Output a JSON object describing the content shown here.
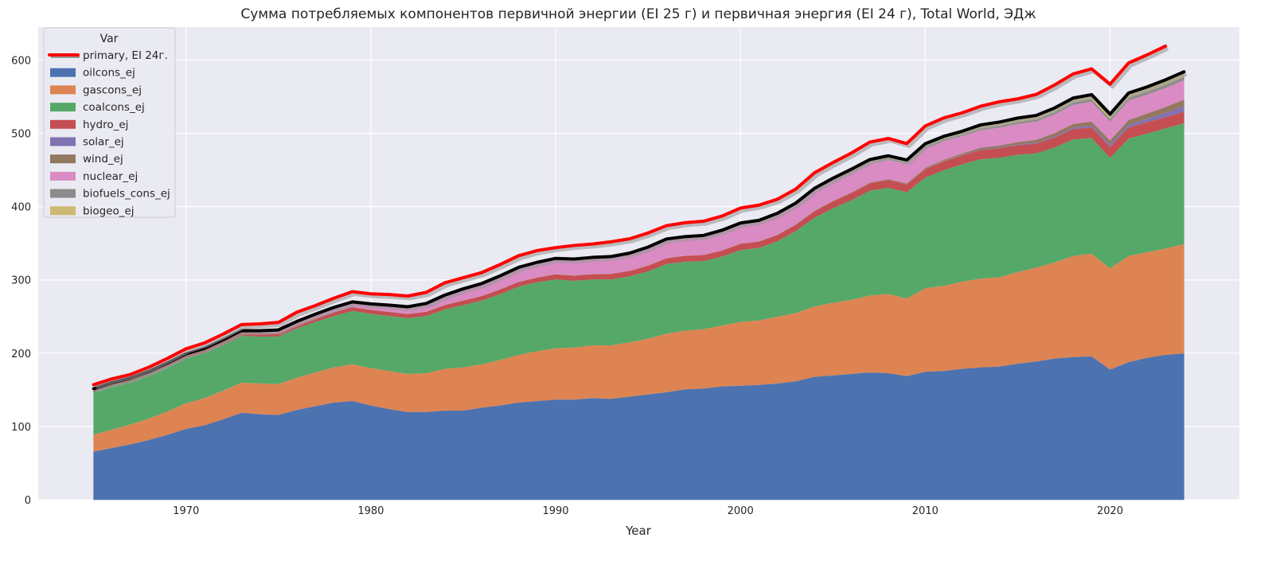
{
  "chart_data": {
    "type": "area",
    "title": "Сумма потребляемых компонентов первичной энергии (EI 25 г) и первичная энергия (EI 24 г), Total World, ЭДж",
    "xlabel": "Year",
    "ylabel": "",
    "xlim": [
      1962,
      2027
    ],
    "ylim": [
      0,
      645
    ],
    "xticks": [
      1970,
      1980,
      1990,
      2000,
      2010,
      2020
    ],
    "yticks": [
      0,
      100,
      200,
      300,
      400,
      500,
      600
    ],
    "grid": true,
    "legend": {
      "title": "Var",
      "placement": "top-left"
    },
    "x_start": 1965,
    "x_end": 2024,
    "stacked_series": [
      {
        "name": "oilcons_ej",
        "color": "#4c72b0",
        "values": [
          66,
          71,
          76,
          82,
          89,
          97,
          102,
          110,
          119,
          117,
          116,
          123,
          128,
          133,
          135,
          129,
          124,
          120,
          120,
          122,
          122,
          126,
          129,
          133,
          135,
          137,
          137,
          139,
          138,
          141,
          144,
          147,
          151,
          152,
          155,
          156,
          157,
          159,
          162,
          168,
          170,
          172,
          174,
          173,
          169,
          175,
          176,
          179,
          181,
          182,
          186,
          189,
          193,
          195,
          196,
          178,
          188,
          194,
          198,
          200
        ]
      },
      {
        "name": "gascons_ej",
        "color": "#dd8452",
        "values": [
          23,
          25,
          27,
          29,
          32,
          35,
          37,
          39,
          41,
          42,
          42,
          44,
          46,
          48,
          50,
          51,
          52,
          52,
          53,
          57,
          59,
          59,
          62,
          65,
          68,
          70,
          71,
          72,
          73,
          74,
          76,
          80,
          80,
          81,
          83,
          87,
          88,
          91,
          93,
          96,
          99,
          101,
          105,
          108,
          106,
          114,
          116,
          119,
          121,
          122,
          125,
          128,
          131,
          138,
          140,
          138,
          145,
          144,
          145,
          149
        ]
      },
      {
        "name": "coalcons_ej",
        "color": "#55a868",
        "values": [
          59,
          60,
          59,
          60,
          61,
          62,
          62,
          63,
          64,
          64,
          65,
          67,
          69,
          70,
          73,
          74,
          75,
          76,
          78,
          81,
          85,
          87,
          90,
          93,
          94,
          94,
          91,
          90,
          90,
          90,
          92,
          95,
          94,
          93,
          94,
          98,
          99,
          103,
          112,
          121,
          129,
          136,
          143,
          145,
          145,
          151,
          158,
          160,
          163,
          163,
          160,
          156,
          157,
          159,
          158,
          151,
          160,
          162,
          164,
          165
        ]
      },
      {
        "name": "hydro_ej",
        "color": "#c44e52",
        "values": [
          3,
          3.2,
          3.3,
          3.5,
          3.7,
          3.9,
          4.1,
          4.3,
          4.4,
          4.7,
          4.8,
          4.9,
          5,
          5.3,
          5.5,
          5.7,
          5.8,
          5.9,
          6.1,
          6.3,
          6.4,
          6.5,
          6.6,
          6.7,
          6.8,
          7.1,
          7.3,
          7.3,
          7.6,
          7.7,
          8,
          8.1,
          8.3,
          8.4,
          8.5,
          8.8,
          8.7,
          8.8,
          8.9,
          9.3,
          9.7,
          10.1,
          10.4,
          10.8,
          10.8,
          11.5,
          11.9,
          12.2,
          12.6,
          12.9,
          13.1,
          13.3,
          13.6,
          14.1,
          14.5,
          15,
          15.3,
          15.5,
          15.4,
          15.8
        ]
      },
      {
        "name": "solar_ej",
        "color": "#8172b3",
        "values": [
          0,
          0,
          0,
          0,
          0,
          0,
          0,
          0,
          0,
          0,
          0,
          0,
          0,
          0,
          0,
          0,
          0,
          0,
          0,
          0,
          0,
          0,
          0,
          0,
          0,
          0,
          0,
          0,
          0,
          0,
          0,
          0,
          0,
          0,
          0,
          0,
          0,
          0,
          0,
          0,
          0.01,
          0.02,
          0.03,
          0.05,
          0.08,
          0.12,
          0.25,
          0.37,
          0.5,
          0.7,
          0.9,
          1.2,
          1.6,
          2,
          2.5,
          3,
          3.6,
          4.5,
          5.7,
          7.5
        ]
      },
      {
        "name": "wind_ej",
        "color": "#937860",
        "values": [
          0,
          0,
          0,
          0,
          0,
          0,
          0,
          0,
          0,
          0,
          0,
          0,
          0,
          0,
          0,
          0,
          0,
          0,
          0,
          0,
          0,
          0,
          0,
          0,
          0,
          0.01,
          0.02,
          0.02,
          0.03,
          0.03,
          0.04,
          0.05,
          0.07,
          0.09,
          0.12,
          0.14,
          0.19,
          0.23,
          0.3,
          0.38,
          0.47,
          0.6,
          0.77,
          0.99,
          1.2,
          1.5,
          1.9,
          2.2,
          2.6,
          2.9,
          3.4,
          3.9,
          4.5,
          5,
          5.4,
          5.8,
          6.6,
          7.3,
          8.1,
          8.8
        ]
      },
      {
        "name": "nuclear_ej",
        "color": "#da8bc3",
        "values": [
          0.3,
          0.4,
          0.5,
          0.6,
          0.7,
          0.9,
          1.2,
          1.6,
          2,
          2.6,
          3.5,
          4,
          4.8,
          5.6,
          5.9,
          6.9,
          8,
          8.6,
          9.8,
          11.8,
          14.2,
          15.2,
          16.6,
          18,
          18.6,
          19.5,
          20.4,
          20.6,
          21.3,
          21.7,
          22.6,
          23.4,
          23.3,
          23.8,
          24.6,
          25.2,
          25.9,
          26.2,
          25.8,
          27,
          27.2,
          27.5,
          26.8,
          26.7,
          26.3,
          26.9,
          25.7,
          23.7,
          23.9,
          24.3,
          24.6,
          24.9,
          25.3,
          25.9,
          26.8,
          25.8,
          26.6,
          25.6,
          25.9,
          26.6
        ]
      },
      {
        "name": "biofuels_cons_ej",
        "color": "#8c8c8c",
        "values": [
          0,
          0,
          0,
          0,
          0,
          0,
          0,
          0,
          0,
          0,
          0.01,
          0.02,
          0.03,
          0.05,
          0.07,
          0.1,
          0.12,
          0.15,
          0.18,
          0.2,
          0.22,
          0.25,
          0.28,
          0.3,
          0.3,
          0.3,
          0.3,
          0.3,
          0.32,
          0.33,
          0.35,
          0.38,
          0.4,
          0.4,
          0.4,
          0.4,
          0.42,
          0.5,
          0.6,
          0.7,
          0.8,
          1.1,
          1.4,
          1.8,
          2,
          2.3,
          2.4,
          2.4,
          2.6,
          2.9,
          3,
          3.1,
          3.3,
          3.6,
          3.9,
          3.7,
          3.9,
          4.2,
          4.5,
          4.7
        ]
      },
      {
        "name": "biogeo_ej",
        "color": "#ccb974",
        "values": [
          0.2,
          0.2,
          0.2,
          0.25,
          0.25,
          0.3,
          0.3,
          0.3,
          0.35,
          0.35,
          0.4,
          0.4,
          0.45,
          0.5,
          0.5,
          0.55,
          0.6,
          0.7,
          0.8,
          0.9,
          1,
          1.1,
          1.1,
          1.2,
          1.3,
          1.4,
          1.5,
          1.5,
          1.6,
          1.7,
          1.8,
          1.9,
          2,
          2,
          2.1,
          2.1,
          2.1,
          2.2,
          2.3,
          2.4,
          2.5,
          2.7,
          2.8,
          3,
          3.2,
          3.5,
          3.7,
          4,
          4.3,
          4.6,
          4.8,
          5,
          5.3,
          5.5,
          5.7,
          5.8,
          6,
          6.2,
          6.4,
          6.6
        ]
      }
    ],
    "sum_line": {
      "color": "#000000"
    },
    "primary_line": {
      "name": "primary, EI 24г.",
      "color": "#ff0000",
      "x_start": 1965,
      "values": [
        157,
        165,
        171,
        181,
        193,
        206,
        214,
        226,
        239,
        240,
        242,
        256,
        265,
        275,
        284,
        281,
        280,
        278,
        283,
        296,
        303,
        310,
        321,
        333,
        340,
        344,
        347,
        349,
        352,
        356,
        364,
        374,
        378,
        380,
        387,
        398,
        402,
        410,
        424,
        446,
        460,
        473,
        488,
        493,
        486,
        510,
        521,
        528,
        537,
        543,
        547,
        553,
        566,
        581,
        588,
        567,
        596,
        607,
        619
      ]
    }
  }
}
